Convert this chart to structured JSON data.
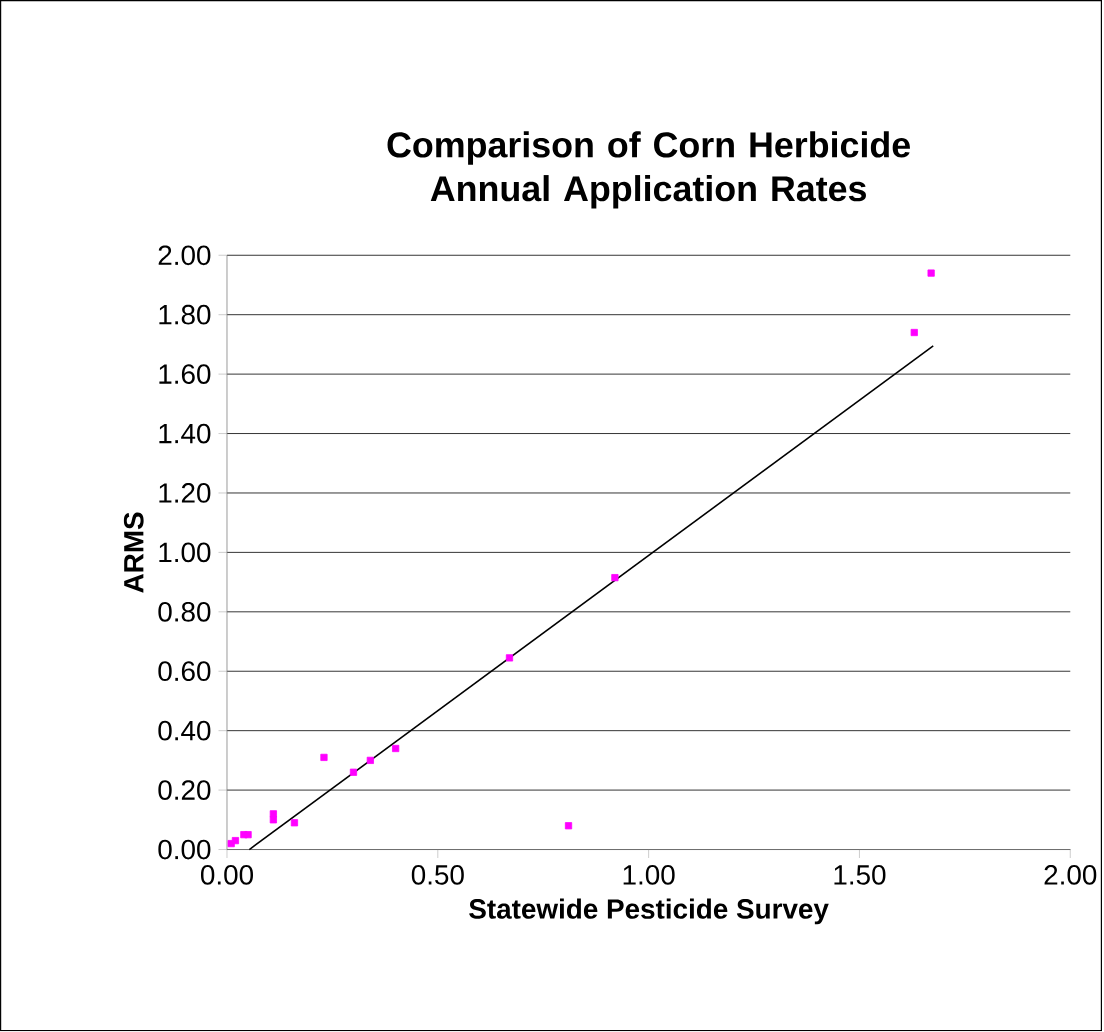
{
  "chart_data": {
    "type": "scatter",
    "title": "Comparison of Corn Herbicide Annual Application Rates",
    "xlabel": "Statewide Pesticide Survey",
    "ylabel": "ARMS",
    "xlim": [
      0,
      2
    ],
    "ylim": [
      0,
      2
    ],
    "xticks": [
      {
        "value": 0,
        "label": "0.00"
      },
      {
        "value": 0.5,
        "label": "0.50"
      },
      {
        "value": 1,
        "label": "1.00"
      },
      {
        "value": 1.5,
        "label": "1.50"
      },
      {
        "value": 2,
        "label": "2.00"
      }
    ],
    "yticks": [
      {
        "value": 0,
        "label": "0.00"
      },
      {
        "value": 0.2,
        "label": "0.20"
      },
      {
        "value": 0.4,
        "label": "0.40"
      },
      {
        "value": 0.6,
        "label": "0.60"
      },
      {
        "value": 0.8,
        "label": "0.80"
      },
      {
        "value": 1,
        "label": "1.00"
      },
      {
        "value": 1.2,
        "label": "1.20"
      },
      {
        "value": 1.4,
        "label": "1.40"
      },
      {
        "value": 1.6,
        "label": "1.60"
      },
      {
        "value": 1.8,
        "label": "1.80"
      },
      {
        "value": 2,
        "label": "2.00"
      }
    ],
    "grid": "y",
    "marker": "square",
    "series": [
      {
        "color": "#ff00ff",
        "x": [
          0.01,
          0.02,
          0.04,
          0.05,
          0.11,
          0.11,
          0.16,
          0.23,
          0.3,
          0.34,
          0.4,
          0.67,
          0.81,
          0.92,
          1.63,
          1.67
        ],
        "values": [
          0.02,
          0.03,
          0.05,
          0.05,
          0.12,
          0.1,
          0.09,
          0.31,
          0.26,
          0.3,
          0.34,
          0.645,
          0.08,
          0.915,
          1.74,
          1.94
        ]
      },
      {
        "type": "line",
        "marker": "none",
        "color": "#000000",
        "x": [
          0.053,
          1.675
        ],
        "values": [
          0,
          1.695
        ]
      }
    ]
  }
}
